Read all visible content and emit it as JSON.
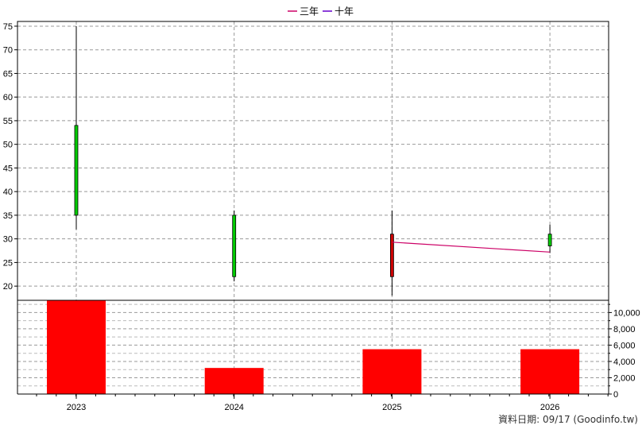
{
  "chart_data": {
    "type": "candlestick",
    "legend": {
      "placement": "top-center",
      "items": [
        {
          "label": "三年",
          "color": "#cc0066"
        },
        {
          "label": "十年",
          "color": "#6600cc"
        }
      ]
    },
    "categories": [
      "2023",
      "2024",
      "2025",
      "2026"
    ],
    "price_axis": {
      "range": [
        17,
        76
      ],
      "ticks": [
        "20",
        "25",
        "30",
        "35",
        "40",
        "45",
        "50",
        "55",
        "60",
        "65",
        "70",
        "75"
      ]
    },
    "volume_axis": {
      "range": [
        0,
        11500
      ],
      "ticks": [
        "0",
        "2,000",
        "4,000",
        "6,000",
        "8,000",
        "10,000"
      ]
    },
    "candles": [
      {
        "year": "2023",
        "open": 35,
        "close": 54,
        "high": 75,
        "low": 32,
        "color": "#00cc00"
      },
      {
        "year": "2024",
        "open": 22,
        "close": 35,
        "high": 36,
        "low": 21,
        "color": "#00cc00"
      },
      {
        "year": "2025",
        "open": 31,
        "close": 22,
        "high": 36,
        "low": 18,
        "color": "#cc0000"
      },
      {
        "year": "2026",
        "open": 28.5,
        "close": 31,
        "high": 33,
        "low": 27,
        "color": "#00cc00"
      }
    ],
    "three_year_line": [
      {
        "year": "2025",
        "value": 29.3
      },
      {
        "year": "2026",
        "value": 27.2
      }
    ],
    "volume": [
      {
        "year": "2023",
        "value": 11500
      },
      {
        "year": "2024",
        "value": 3200
      },
      {
        "year": "2025",
        "value": 5500
      },
      {
        "year": "2026",
        "value": 5500
      }
    ],
    "volume_color": "#ff0000",
    "grid": true
  },
  "footer": "資料日期: 09/17  (Goodinfo.tw)"
}
